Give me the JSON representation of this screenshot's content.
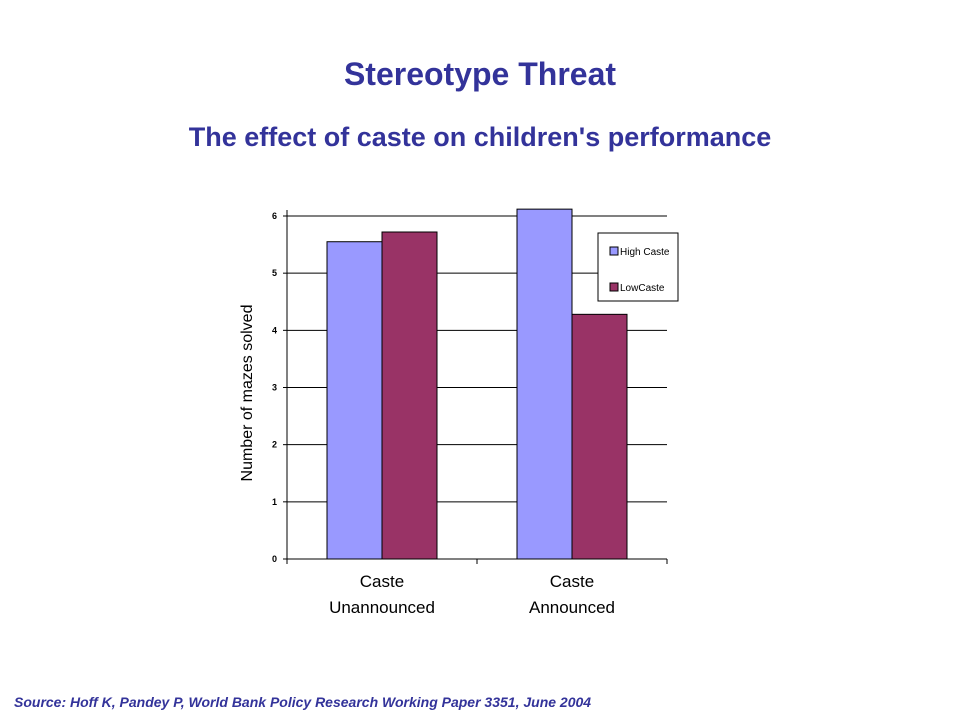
{
  "slide": {
    "title": "Stereotype Threat",
    "subtitle": "The effect of caste on children's performance",
    "source": "Source:  Hoff K, Pandey P, World Bank Policy Research Working Paper 3351, June 2004"
  },
  "chart_data": {
    "type": "bar",
    "title": "",
    "xlabel": "",
    "ylabel": "Number of mazes solved",
    "categories": [
      "Caste Unannounced",
      "Caste Announced"
    ],
    "category_lines": [
      [
        "Caste",
        "Unannounced"
      ],
      [
        "Caste",
        "Announced"
      ]
    ],
    "series": [
      {
        "name": "High Caste",
        "values": [
          5.55,
          6.12
        ],
        "color": "#9999ff"
      },
      {
        "name": "LowCaste",
        "values": [
          5.72,
          4.28
        ],
        "color": "#993366"
      }
    ],
    "ylim": [
      0,
      6
    ],
    "yticks": [
      0,
      1,
      2,
      3,
      4,
      5,
      6
    ],
    "grid": true,
    "legend": "right"
  }
}
